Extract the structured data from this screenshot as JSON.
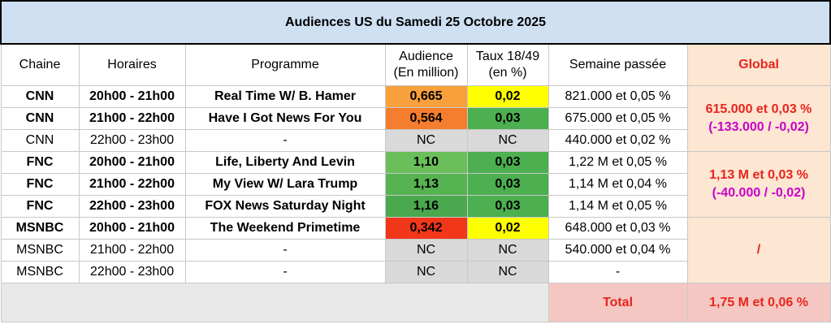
{
  "title": "Audiences US du Samedi 25 Octobre 2025",
  "headers": {
    "chaine": "Chaine",
    "horaires": "Horaires",
    "programme": "Programme",
    "audience_l1": "Audience",
    "audience_l2": "(En million)",
    "taux_l1": "Taux 18/49",
    "taux_l2": "(en %)",
    "semaine": "Semaine passée",
    "global": "Global"
  },
  "rows": [
    {
      "chaine": "CNN",
      "horaires": "20h00 - 21h00",
      "programme": "Real Time W/ B. Hamer",
      "audience": "0,665",
      "taux": "0,02",
      "semaine": "821.000 et 0,05 %",
      "bold": true,
      "aud_color": "#f7a03c",
      "taux_color": "#ffff00"
    },
    {
      "chaine": "CNN",
      "horaires": "21h00 - 22h00",
      "programme": "Have I Got News For You",
      "audience": "0,564",
      "taux": "0,03",
      "semaine": "675.000 et 0,05 %",
      "bold": true,
      "aud_color": "#f47d2e",
      "taux_color": "#4caf50"
    },
    {
      "chaine": "CNN",
      "horaires": "22h00 - 23h00",
      "programme": "-",
      "audience": "NC",
      "taux": "NC",
      "semaine": "440.000 et 0,02 %",
      "bold": false,
      "aud_color": "#d9d9d9",
      "taux_color": "#d9d9d9"
    },
    {
      "chaine": "FNC",
      "horaires": "20h00 - 21h00",
      "programme": "Life, Liberty And Levin",
      "audience": "1,10",
      "taux": "0,03",
      "semaine": "1,22 M et 0,05 %",
      "bold": true,
      "aud_color": "#6abf5a",
      "taux_color": "#4caf50"
    },
    {
      "chaine": "FNC",
      "horaires": "21h00 - 22h00",
      "programme": "My View W/ Lara Trump",
      "audience": "1,13",
      "taux": "0,03",
      "semaine": "1,14 M et 0,04 %",
      "bold": true,
      "aud_color": "#55b451",
      "taux_color": "#4caf50"
    },
    {
      "chaine": "FNC",
      "horaires": "22h00 - 23h00",
      "programme": "FOX News Saturday Night",
      "audience": "1,16",
      "taux": "0,03",
      "semaine": "1,14 M et 0,05 %",
      "bold": true,
      "aud_color": "#4aa84e",
      "taux_color": "#4caf50"
    },
    {
      "chaine": "MSNBC",
      "horaires": "20h00 - 21h00",
      "programme": "The Weekend Primetime",
      "audience": "0,342",
      "taux": "0,02",
      "semaine": "648.000 et 0,03 %",
      "bold": true,
      "aud_color": "#f2361a",
      "taux_color": "#ffff00"
    },
    {
      "chaine": "MSNBC",
      "horaires": "21h00 - 22h00",
      "programme": "-",
      "audience": "NC",
      "taux": "NC",
      "semaine": "540.000 et 0,04 %",
      "bold": false,
      "aud_color": "#d9d9d9",
      "taux_color": "#d9d9d9"
    },
    {
      "chaine": "MSNBC",
      "horaires": "22h00 - 23h00",
      "programme": "-",
      "audience": "NC",
      "taux": "NC",
      "semaine": "-",
      "bold": false,
      "aud_color": "#d9d9d9",
      "taux_color": "#d9d9d9"
    }
  ],
  "globals": {
    "cnn_main": "615.000 et 0,03 %",
    "cnn_diff": "(-133.000 / -0,02)",
    "fnc_main": "1,13 M et 0,03 %",
    "fnc_diff": "(-40.000 / -0,02)",
    "msnbc": "/"
  },
  "footer": {
    "total_label": "Total",
    "total_value": "1,75 M et 0,06 %"
  }
}
